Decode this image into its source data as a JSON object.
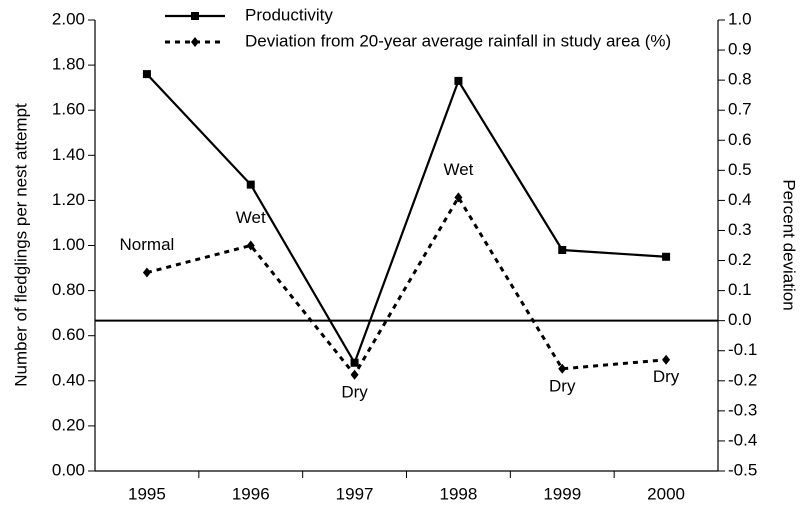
{
  "chart_data": {
    "type": "line",
    "categories": [
      "1995",
      "1996",
      "1997",
      "1998",
      "1999",
      "2000"
    ],
    "ylabel": "Number of fledglings per nest attempt",
    "y2label": "Percent deviation",
    "ylim": [
      0,
      2
    ],
    "yticks": [
      {
        "value": 0,
        "label": "0.00"
      },
      {
        "value": 0.2,
        "label": "0.20"
      },
      {
        "value": 0.4,
        "label": "0.40"
      },
      {
        "value": 0.6,
        "label": "0.60"
      },
      {
        "value": 0.8,
        "label": "0.80"
      },
      {
        "value": 1,
        "label": "1.00"
      },
      {
        "value": 1.2,
        "label": "1.20"
      },
      {
        "value": 1.4,
        "label": "1.40"
      },
      {
        "value": 1.6,
        "label": "1.60"
      },
      {
        "value": 1.8,
        "label": "1.80"
      },
      {
        "value": 2,
        "label": "2.00"
      }
    ],
    "y2lim": [
      -0.5,
      1
    ],
    "y2ticks": [
      -0.5,
      -0.4,
      -0.3,
      -0.2,
      -0.1,
      {
        "value": 0,
        "label": "0.0"
      },
      0.1,
      0.2,
      0.3,
      0.4,
      0.5,
      0.6,
      0.7,
      0.8,
      0.9,
      {
        "value": 1,
        "label": "1.0"
      }
    ],
    "series": [
      {
        "name": "Productivity",
        "color": "#000000",
        "marker": "square",
        "dash": "solid",
        "axis": "y",
        "values": [
          1.76,
          1.27,
          0.48,
          1.73,
          0.98,
          0.95
        ]
      },
      {
        "name": "Deviation from 20-year average rainfall in study area (%)",
        "color": "#000000",
        "marker": "diamond",
        "dash": "dotted",
        "axis": "y2",
        "values": [
          0.16,
          0.25,
          -0.18,
          0.41,
          -0.16,
          -0.13
        ],
        "point_labels": [
          "Normal",
          "Wet",
          "Dry",
          "Wet",
          "Dry",
          "Dry"
        ]
      }
    ]
  }
}
